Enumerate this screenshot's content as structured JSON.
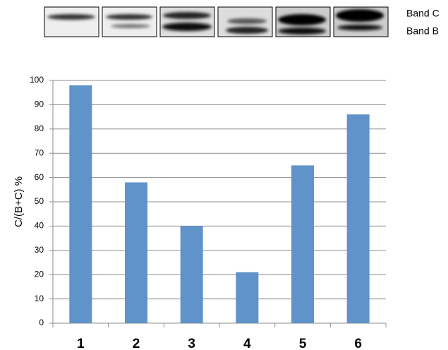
{
  "chart_data": {
    "type": "bar",
    "categories": [
      "1",
      "2",
      "3",
      "4",
      "5",
      "6"
    ],
    "values": [
      98,
      58,
      40,
      21,
      65,
      86
    ],
    "color": "#5f93c9",
    "ylabel": "C/(B+C) %",
    "ylim": [
      0,
      100
    ],
    "yticks": [
      0,
      10,
      20,
      30,
      40,
      50,
      60,
      70,
      80,
      90,
      100
    ],
    "grid": true,
    "annotations": [
      "Band C",
      "Band B"
    ]
  }
}
